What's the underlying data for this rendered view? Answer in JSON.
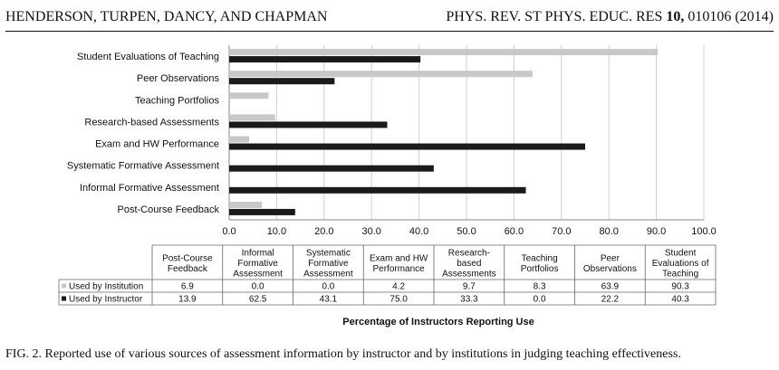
{
  "header": {
    "authors": "HENDERSON, TURPEN, DANCY, AND CHAPMAN",
    "journal_prefix": "PHYS. REV. ST PHYS. EDUC. RES",
    "volume": "10,",
    "article": "010106 (2014)"
  },
  "caption": "FIG. 2.   Reported use of various sources of assessment information by instructor and by institutions in judging teaching effectiveness.",
  "colors": {
    "institution": "#c8c8c8",
    "instructor": "#1a1a1a",
    "grid": "#d0d0d0"
  },
  "chart_data": {
    "type": "bar",
    "orientation": "horizontal",
    "xlim": [
      0,
      100
    ],
    "xticks": [
      "0.0",
      "10.0",
      "20.0",
      "30.0",
      "40.0",
      "50.0",
      "60.0",
      "70.0",
      "80.0",
      "90.0",
      "100.0"
    ],
    "xlabel": "Percentage of Instructors Reporting Use",
    "grid": true,
    "categories": [
      "Student Evaluations of Teaching",
      "Peer Observations",
      "Teaching Portfolios",
      "Research-based Assessments",
      "Exam and HW Performance",
      "Systematic Formative Assessment",
      "Informal Formative Assessment",
      "Post-Course Feedback"
    ],
    "series": [
      {
        "name": "Used by Institution",
        "values": [
          90.3,
          63.9,
          8.3,
          9.7,
          4.2,
          0.0,
          0.0,
          6.9
        ]
      },
      {
        "name": "Used by Instructor",
        "values": [
          40.3,
          22.2,
          0.0,
          33.3,
          75.0,
          43.1,
          62.5,
          13.9
        ]
      }
    ],
    "table": {
      "headers": [
        [
          "Post-Course",
          "Feedback"
        ],
        [
          "Informal",
          "Formative",
          "Assessment"
        ],
        [
          "Systematic",
          "Formative",
          "Assessment"
        ],
        [
          "Exam and HW",
          "Performance"
        ],
        [
          "Research-",
          "based",
          "Assessments"
        ],
        [
          "Teaching",
          "Portfolios"
        ],
        [
          "Peer",
          "Observations"
        ],
        [
          "Student",
          "Evaluations of",
          "Teaching"
        ]
      ],
      "rows": [
        {
          "label": "Used by Institution",
          "values": [
            "6.9",
            "0.0",
            "0.0",
            "4.2",
            "9.7",
            "8.3",
            "63.9",
            "90.3"
          ]
        },
        {
          "label": "Used by Instructor",
          "values": [
            "13.9",
            "62.5",
            "43.1",
            "75.0",
            "33.3",
            "0.0",
            "22.2",
            "40.3"
          ]
        }
      ]
    }
  }
}
